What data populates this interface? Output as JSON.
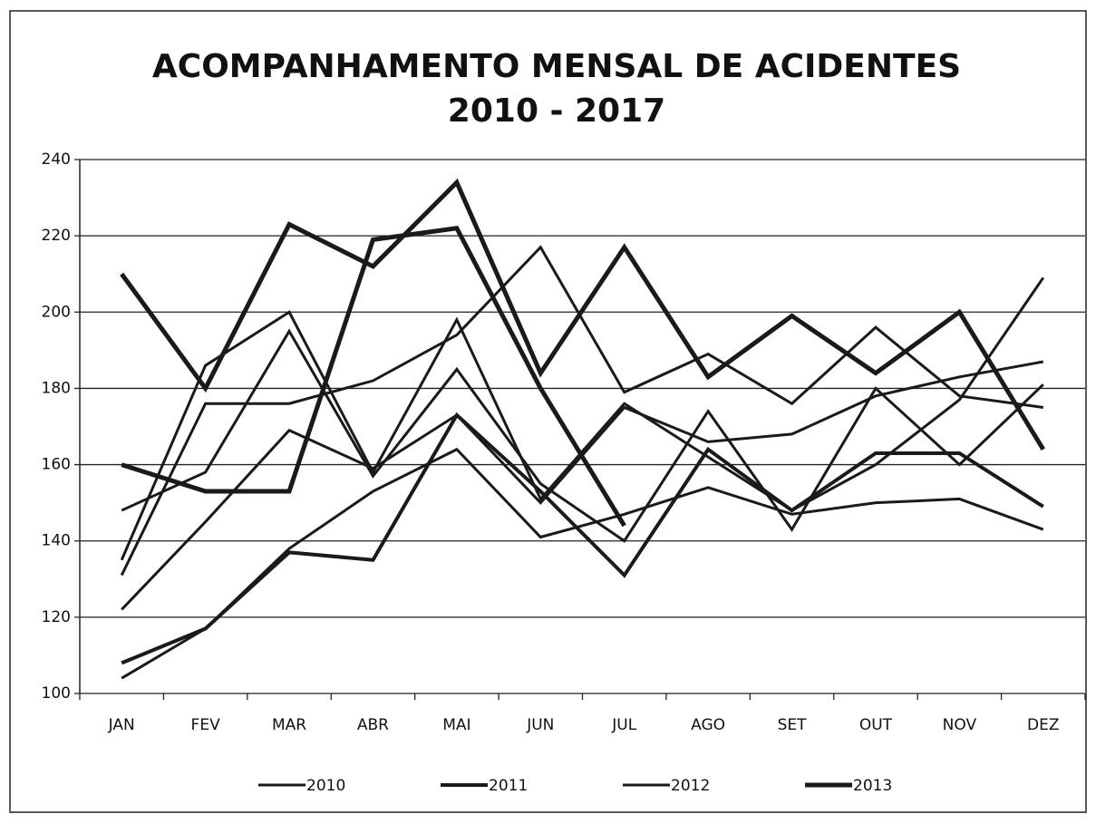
{
  "chart_data": {
    "type": "line",
    "title": [
      "ACOMPANHAMENTO MENSAL DE ACIDENTES",
      "2010 - 2017"
    ],
    "categories": [
      "JAN",
      "FEV",
      "MAR",
      "ABR",
      "MAI",
      "JUN",
      "JUL",
      "AGO",
      "SET",
      "OUT",
      "NOV",
      "DEZ"
    ],
    "series": [
      {
        "name": "2010",
        "color": "#1a1a1a",
        "width": 3,
        "values": [
          104,
          117,
          138,
          153,
          164,
          141,
          147,
          154,
          147,
          150,
          151,
          143
        ]
      },
      {
        "name": "2011",
        "color": "#1a1a1a",
        "width": 4,
        "values": [
          108,
          117,
          137,
          135,
          173,
          153,
          131,
          164,
          148,
          163,
          163,
          149
        ]
      },
      {
        "name": "2012",
        "color": "#1a1a1a",
        "width": 3,
        "values": [
          148,
          158,
          195,
          157,
          185,
          155,
          140,
          174,
          143,
          180,
          160,
          181
        ]
      },
      {
        "name": "2013",
        "color": "#1a1a1a",
        "width": 5,
        "values": [
          210,
          180,
          223,
          212,
          234,
          184,
          217,
          183,
          199,
          184,
          200,
          164
        ]
      },
      {
        "color": "#1a1a1a",
        "width": 3,
        "values": [
          122,
          145,
          169,
          159,
          173,
          150,
          175,
          166,
          168,
          178,
          183,
          187
        ]
      },
      {
        "color": "#1a1a1a",
        "width": 3,
        "values": [
          131,
          176,
          176,
          182,
          194,
          217,
          179,
          189,
          176,
          196,
          178,
          175
        ]
      },
      {
        "color": "#1a1a1a",
        "width": 3,
        "values": [
          135,
          186,
          200,
          158,
          198,
          151,
          176,
          162,
          148,
          160,
          177,
          209
        ]
      },
      {
        "color": "#1a1a1a",
        "width": 5,
        "values": [
          160,
          153,
          153,
          219,
          222,
          180,
          144,
          null,
          null,
          null,
          null,
          null
        ]
      }
    ],
    "ylim": [
      100,
      240
    ],
    "yticks": [
      100,
      120,
      140,
      160,
      180,
      200,
      220,
      240
    ],
    "grid": true,
    "legend": "bottom"
  }
}
